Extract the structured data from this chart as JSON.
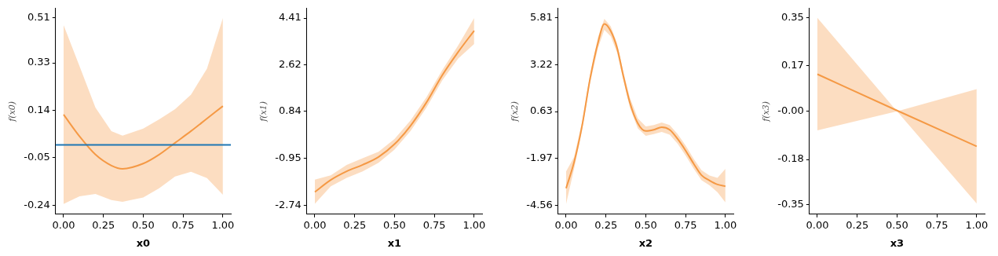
{
  "chart_data": [
    {
      "type": "line",
      "xlabel": "x0",
      "ylabel": "f(x0)",
      "x": [
        0,
        0.1,
        0.2,
        0.3,
        0.37,
        0.5,
        0.6,
        0.7,
        0.8,
        0.9,
        1.0
      ],
      "series": [
        {
          "color": "#f59a45",
          "values": [
            0.123,
            0.036,
            -0.037,
            -0.081,
            -0.094,
            -0.073,
            -0.037,
            0.01,
            0.057,
            0.107,
            0.157
          ],
          "upper": [
            0.481,
            0.317,
            0.151,
            0.057,
            0.039,
            0.067,
            0.104,
            0.145,
            0.203,
            0.307,
            0.51
          ],
          "lower": [
            -0.235,
            -0.204,
            -0.195,
            -0.219,
            -0.226,
            -0.209,
            -0.172,
            -0.125,
            -0.106,
            -0.131,
            -0.198
          ]
        }
      ],
      "ref_lines": [
        {
          "axis": "y",
          "value": 0.002,
          "color": "#1f77b4"
        }
      ],
      "xlim": [
        -0.05,
        1.05
      ],
      "xticks": [
        {
          "value": 0,
          "label": "0.00"
        },
        {
          "value": 0.25,
          "label": "0.25"
        },
        {
          "value": 0.5,
          "label": "0.50"
        },
        {
          "value": 0.75,
          "label": "0.75"
        },
        {
          "value": 1,
          "label": "1.00"
        }
      ],
      "ylim": [
        -0.276,
        0.548
      ],
      "yticks": [
        -0.24,
        -0.05,
        0.14,
        0.33,
        0.51
      ],
      "grid": false
    },
    {
      "type": "line",
      "xlabel": "x1",
      "ylabel": "f(x1)",
      "x": [
        0,
        0.1,
        0.2,
        0.3,
        0.4,
        0.5,
        0.6,
        0.7,
        0.8,
        0.9,
        1.0
      ],
      "series": [
        {
          "color": "#f59a45",
          "values": [
            -2.24,
            -1.78,
            -1.45,
            -1.2,
            -0.9,
            -0.41,
            0.29,
            1.18,
            2.23,
            3.12,
            3.93
          ],
          "upper": [
            -1.77,
            -1.6,
            -1.2,
            -0.95,
            -0.7,
            -0.21,
            0.49,
            1.38,
            2.42,
            3.37,
            4.41
          ],
          "lower": [
            -2.69,
            -2.02,
            -1.7,
            -1.45,
            -1.12,
            -0.62,
            0.09,
            0.98,
            2.03,
            2.87,
            3.42
          ]
        }
      ],
      "xlim": [
        -0.05,
        1.05
      ],
      "xticks": [
        {
          "value": 0,
          "label": "0.00"
        },
        {
          "value": 0.25,
          "label": "0.25"
        },
        {
          "value": 0.5,
          "label": "0.50"
        },
        {
          "value": 0.75,
          "label": "0.75"
        },
        {
          "value": 1,
          "label": "1.00"
        }
      ],
      "ylim": [
        -3.09,
        4.78
      ],
      "yticks": [
        -2.74,
        -0.95,
        0.84,
        2.62,
        4.41
      ],
      "grid": false
    },
    {
      "type": "line",
      "xlabel": "x2",
      "ylabel": "f(x2)",
      "x": [
        0,
        0.05,
        0.1,
        0.15,
        0.2,
        0.24,
        0.28,
        0.32,
        0.36,
        0.4,
        0.45,
        0.5,
        0.55,
        0.6,
        0.65,
        0.7,
        0.75,
        0.8,
        0.85,
        0.9,
        0.95,
        1.0
      ],
      "series": [
        {
          "color": "#f59a45",
          "values": [
            -3.62,
            -2.18,
            -0.17,
            2.43,
            4.44,
            5.48,
            5.09,
            4.15,
            2.57,
            1.13,
            -0.02,
            -0.45,
            -0.38,
            -0.24,
            -0.38,
            -0.89,
            -1.53,
            -2.25,
            -2.9,
            -3.19,
            -3.41,
            -3.51
          ],
          "upper": [
            -2.69,
            -1.89,
            0.05,
            2.65,
            4.75,
            5.77,
            5.35,
            4.4,
            2.8,
            1.4,
            0.25,
            -0.2,
            -0.12,
            0.02,
            -0.12,
            -0.62,
            -1.25,
            -1.98,
            -2.62,
            -2.92,
            -3.05,
            -2.54
          ],
          "lower": [
            -4.49,
            -2.54,
            -0.4,
            2.2,
            4.15,
            5.16,
            4.8,
            3.9,
            2.35,
            0.85,
            -0.3,
            -0.72,
            -0.62,
            -0.5,
            -0.65,
            -1.15,
            -1.8,
            -2.52,
            -3.18,
            -3.46,
            -3.84,
            -4.41
          ]
        }
      ],
      "xlim": [
        -0.05,
        1.05
      ],
      "xticks": [
        {
          "value": 0,
          "label": "0.00"
        },
        {
          "value": 0.25,
          "label": "0.25"
        },
        {
          "value": 0.5,
          "label": "0.50"
        },
        {
          "value": 0.75,
          "label": "0.75"
        },
        {
          "value": 1,
          "label": "1.00"
        }
      ],
      "ylim": [
        -5.06,
        6.34
      ],
      "yticks": [
        -4.56,
        -1.97,
        0.63,
        3.22,
        5.81
      ],
      "grid": false
    },
    {
      "type": "line",
      "xlabel": "x3",
      "ylabel": "f(x3)",
      "x": [
        0,
        0.5,
        1.0
      ],
      "series": [
        {
          "color": "#f59a45",
          "values": [
            0.139,
            0.003,
            -0.131
          ],
          "upper": [
            0.35,
            0.0,
            0.083
          ],
          "lower": [
            -0.071,
            0.0,
            -0.345
          ]
        }
      ],
      "xlim": [
        -0.05,
        1.05
      ],
      "xticks": [
        {
          "value": 0,
          "label": "0.00"
        },
        {
          "value": 0.25,
          "label": "0.25"
        },
        {
          "value": 0.5,
          "label": "0.50"
        },
        {
          "value": 0.75,
          "label": "0.75"
        },
        {
          "value": 1,
          "label": "1.00"
        }
      ],
      "ylim": [
        -0.385,
        0.385
      ],
      "yticks": [
        -0.35,
        -0.18,
        {
          "value": 0,
          "label": "-0.00"
        },
        0.17,
        0.35
      ],
      "grid": false
    }
  ]
}
